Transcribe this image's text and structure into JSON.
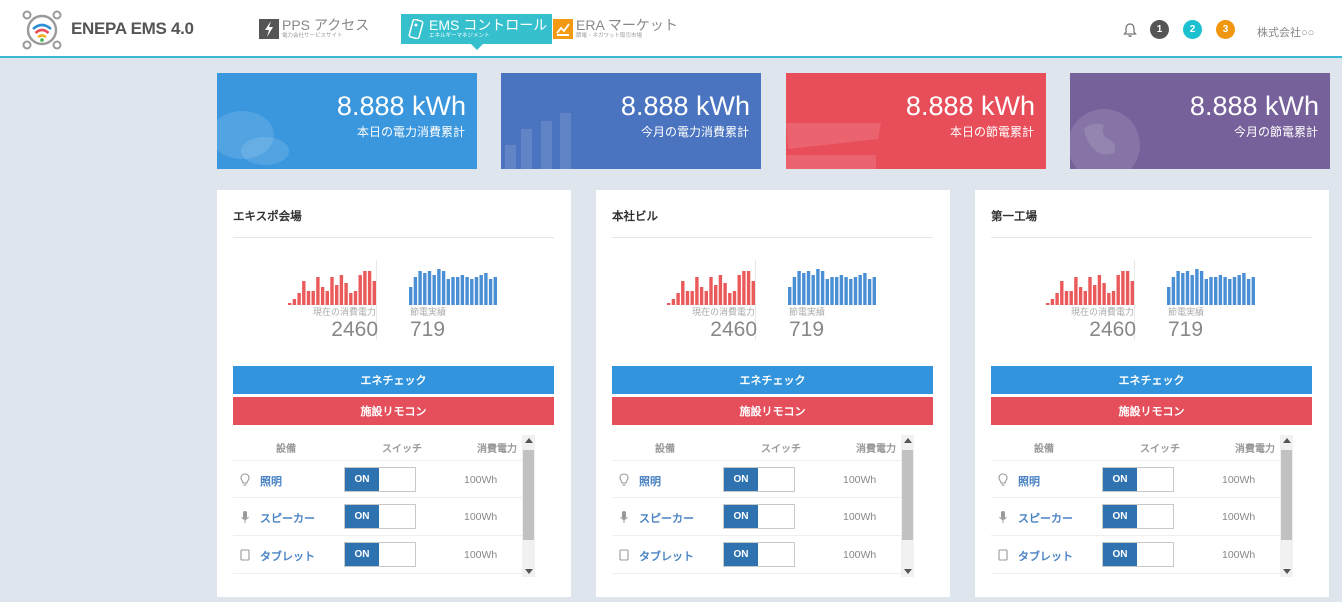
{
  "app": {
    "title": "ENEPA EMS 4.0",
    "logo_icon": "wifi-network-logo-icon"
  },
  "nav": [
    {
      "label": "PPS アクセス",
      "sublabel": "電力会社サービスサイト",
      "icon": "lightning-icon",
      "active": false
    },
    {
      "label": "EMS コントロール",
      "sublabel": "エネルギーマネジメント",
      "icon": "remote-control-icon",
      "active": true
    },
    {
      "label": "ERA マーケット",
      "sublabel": "節電・ネガワット取引市場",
      "icon": "market-icon",
      "active": false
    }
  ],
  "header": {
    "bell_icon": "bell-icon",
    "badges": [
      {
        "count": "1",
        "color": "#555555"
      },
      {
        "count": "2",
        "color": "#1cc0cf"
      },
      {
        "count": "3",
        "color": "#f0960f"
      }
    ],
    "company": "株式会社○○"
  },
  "stats": [
    {
      "value": "8.888 kWh",
      "label": "本日の電力消費累計",
      "color": "#3a97dd",
      "icon": "chat-bubble-icon"
    },
    {
      "value": "8.888 kWh",
      "label": "今月の電力消費累計",
      "color": "#4a74bf",
      "icon": "bar-chart-icon"
    },
    {
      "value": "8.888 kWh",
      "label": "本日の節電累計",
      "color": "#e84e5a",
      "icon": "cart-icon"
    },
    {
      "value": "8.888 kWh",
      "label": "今月の節電累計",
      "color": "#76619a",
      "icon": "globe-icon"
    }
  ],
  "sites": [
    {
      "name": "エキスポ会場",
      "consumption_label": "現在の消費電力",
      "consumption_value": "2460",
      "saving_label": "節電実績",
      "saving_value": "719",
      "check_button": "エネチェック",
      "remote_button": "施設リモコン",
      "columns": [
        "設備",
        "スイッチ",
        "消費電力"
      ],
      "devices": [
        {
          "name": "照明",
          "icon": "lightbulb-icon",
          "switch": "ON",
          "power": "100Wh"
        },
        {
          "name": "スピーカー",
          "icon": "microphone-icon",
          "switch": "ON",
          "power": "100Wh"
        },
        {
          "name": "タブレット",
          "icon": "tablet-icon",
          "switch": "ON",
          "power": "100Wh"
        }
      ]
    },
    {
      "name": "本社ビル",
      "consumption_label": "現在の消費電力",
      "consumption_value": "2460",
      "saving_label": "節電実績",
      "saving_value": "719",
      "check_button": "エネチェック",
      "remote_button": "施設リモコン",
      "columns": [
        "設備",
        "スイッチ",
        "消費電力"
      ],
      "devices": [
        {
          "name": "照明",
          "icon": "lightbulb-icon",
          "switch": "ON",
          "power": "100Wh"
        },
        {
          "name": "スピーカー",
          "icon": "microphone-icon",
          "switch": "ON",
          "power": "100Wh"
        },
        {
          "name": "タブレット",
          "icon": "tablet-icon",
          "switch": "ON",
          "power": "100Wh"
        }
      ]
    },
    {
      "name": "第一工場",
      "consumption_label": "現在の消費電力",
      "consumption_value": "2460",
      "saving_label": "節電実績",
      "saving_value": "719",
      "check_button": "エネチェック",
      "remote_button": "施設リモコン",
      "columns": [
        "設備",
        "スイッチ",
        "消費電力"
      ],
      "devices": [
        {
          "name": "照明",
          "icon": "lightbulb-icon",
          "switch": "ON",
          "power": "100Wh"
        },
        {
          "name": "スピーカー",
          "icon": "microphone-icon",
          "switch": "ON",
          "power": "100Wh"
        },
        {
          "name": "タブレット",
          "icon": "tablet-icon",
          "switch": "ON",
          "power": "100Wh"
        }
      ]
    }
  ],
  "sparklines": {
    "consumption": [
      2,
      6,
      12,
      24,
      14,
      14,
      28,
      18,
      14,
      28,
      20,
      30,
      22,
      12,
      14,
      30,
      34,
      34,
      24
    ],
    "saving": [
      18,
      28,
      34,
      32,
      34,
      30,
      36,
      34,
      26,
      28,
      28,
      30,
      28,
      26,
      28,
      30,
      32,
      26,
      28
    ],
    "consumption_color": "#ea5a5a",
    "saving_color": "#4a8fd4"
  }
}
